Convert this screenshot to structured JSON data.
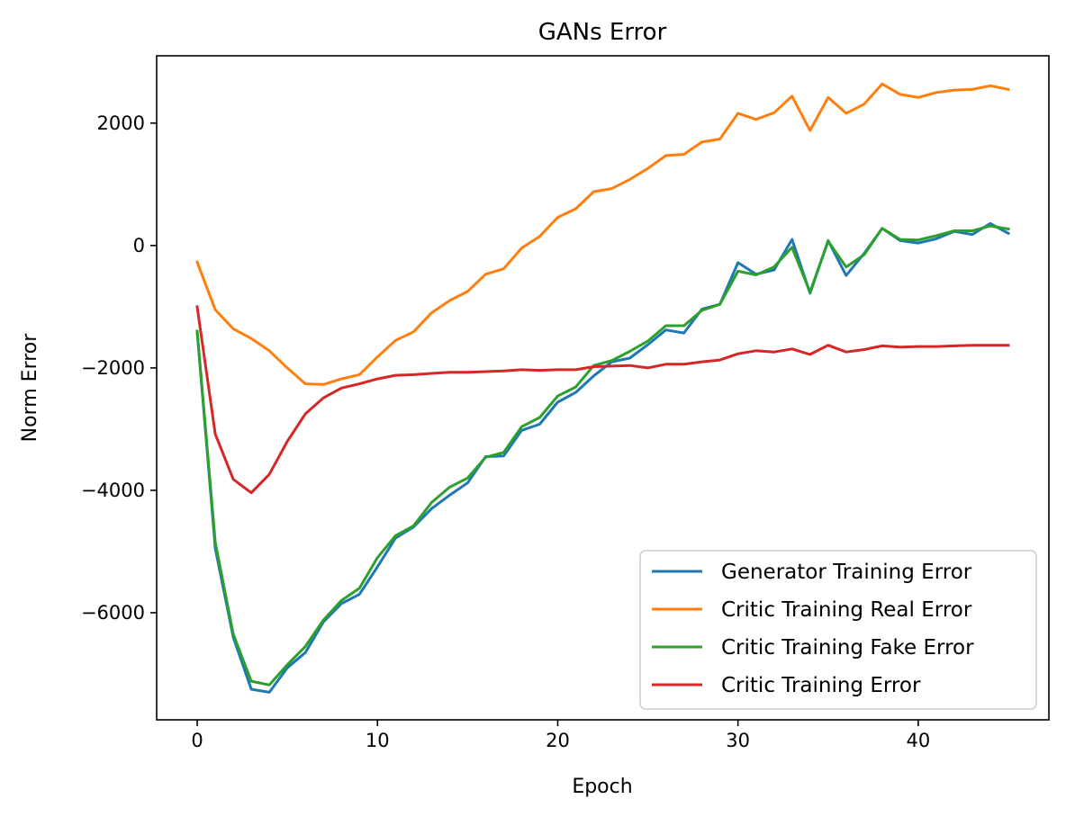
{
  "chart_data": {
    "type": "line",
    "title": "GANs Error",
    "xlabel": "Epoch",
    "ylabel": "Norm Error",
    "xlim": [
      -2.25,
      47.25
    ],
    "ylim": [
      -7750,
      3100
    ],
    "x_ticks": [
      0,
      10,
      20,
      30,
      40
    ],
    "y_ticks": [
      -6000,
      -4000,
      -2000,
      0,
      2000
    ],
    "y_tick_labels": [
      "−6000",
      "−4000",
      "−2000",
      "0",
      "2000"
    ],
    "grid": false,
    "legend_position": "lower-right",
    "x": [
      0,
      1,
      2,
      3,
      4,
      5,
      6,
      7,
      8,
      9,
      10,
      11,
      12,
      13,
      14,
      15,
      16,
      17,
      18,
      19,
      20,
      21,
      22,
      23,
      24,
      25,
      26,
      27,
      28,
      29,
      30,
      31,
      32,
      33,
      34,
      35,
      36,
      37,
      38,
      39,
      40,
      41,
      42,
      43,
      44,
      45
    ],
    "series": [
      {
        "name": "Generator Training Error",
        "color": "#1f77b4",
        "values": [
          -1400,
          -4950,
          -6400,
          -7250,
          -7300,
          -6900,
          -6650,
          -6150,
          -5850,
          -5700,
          -5250,
          -4780,
          -4600,
          -4300,
          -4080,
          -3880,
          -3450,
          -3440,
          -3020,
          -2920,
          -2560,
          -2400,
          -2130,
          -1900,
          -1840,
          -1620,
          -1380,
          -1430,
          -1040,
          -960,
          -280,
          -470,
          -400,
          100,
          -780,
          80,
          -490,
          -130,
          280,
          80,
          40,
          110,
          230,
          180,
          360,
          200
        ]
      },
      {
        "name": "Critic Training Real Error",
        "color": "#ff7f0e",
        "values": [
          -270,
          -1050,
          -1360,
          -1520,
          -1720,
          -2000,
          -2260,
          -2270,
          -2180,
          -2110,
          -1820,
          -1550,
          -1410,
          -1100,
          -900,
          -750,
          -470,
          -380,
          -40,
          150,
          460,
          600,
          880,
          930,
          1080,
          1260,
          1470,
          1490,
          1690,
          1740,
          2160,
          2060,
          2170,
          2440,
          1880,
          2420,
          2160,
          2310,
          2640,
          2470,
          2420,
          2500,
          2540,
          2550,
          2610,
          2550
        ]
      },
      {
        "name": "Critic Training Fake Error",
        "color": "#2ca02c",
        "values": [
          -1400,
          -4850,
          -6350,
          -7120,
          -7180,
          -6850,
          -6550,
          -6120,
          -5800,
          -5600,
          -5100,
          -4740,
          -4580,
          -4200,
          -3950,
          -3800,
          -3460,
          -3380,
          -2960,
          -2810,
          -2460,
          -2310,
          -1960,
          -1880,
          -1730,
          -1560,
          -1310,
          -1310,
          -1060,
          -960,
          -420,
          -480,
          -350,
          -30,
          -760,
          70,
          -350,
          -150,
          280,
          100,
          90,
          160,
          240,
          240,
          320,
          270
        ]
      },
      {
        "name": "Critic Training Error",
        "color": "#d62728",
        "values": [
          -1000,
          -3080,
          -3820,
          -4040,
          -3740,
          -3200,
          -2750,
          -2490,
          -2330,
          -2260,
          -2180,
          -2120,
          -2110,
          -2090,
          -2070,
          -2070,
          -2060,
          -2050,
          -2030,
          -2040,
          -2030,
          -2030,
          -1980,
          -1970,
          -1960,
          -2000,
          -1940,
          -1940,
          -1900,
          -1870,
          -1770,
          -1720,
          -1740,
          -1690,
          -1780,
          -1630,
          -1740,
          -1700,
          -1640,
          -1660,
          -1650,
          -1650,
          -1640,
          -1630,
          -1630,
          -1630
        ]
      }
    ]
  }
}
